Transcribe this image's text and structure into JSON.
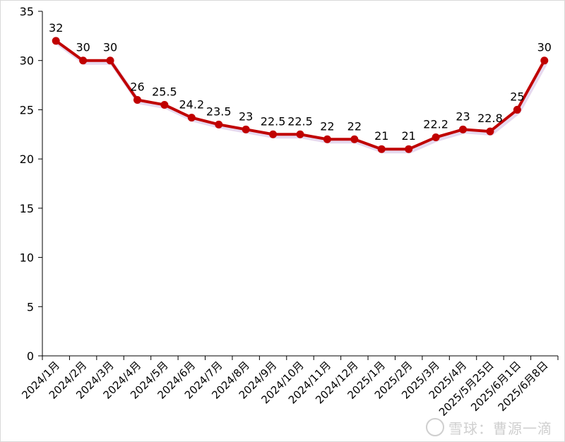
{
  "chart_data": {
    "type": "line",
    "title": "",
    "xlabel": "",
    "ylabel": "",
    "categories": [
      "2024/1月",
      "2024/2月",
      "2024/3月",
      "2024/4月",
      "2024/5月",
      "2024/6月",
      "2024/7月",
      "2024/8月",
      "2024/9月",
      "2024/10月",
      "2024/11月",
      "2024/12月",
      "2025/1月",
      "2025/2月",
      "2025/3月",
      "2025/4月",
      "2025/5月25日",
      "2025/6月1日",
      "2025/6月8日"
    ],
    "series": [
      {
        "values": [
          32,
          30,
          30,
          26,
          25.5,
          24.2,
          23.5,
          23,
          22.5,
          22.5,
          22,
          22,
          21,
          21,
          22.2,
          23,
          22.8,
          25,
          30
        ],
        "color": "#c00000"
      }
    ],
    "ylim": [
      0,
      35
    ],
    "yticks": [
      0,
      5,
      10,
      15,
      20,
      25,
      30,
      35
    ],
    "grid": false,
    "legend": "none"
  },
  "watermark": {
    "text": "雪球：曹源一滴"
  }
}
